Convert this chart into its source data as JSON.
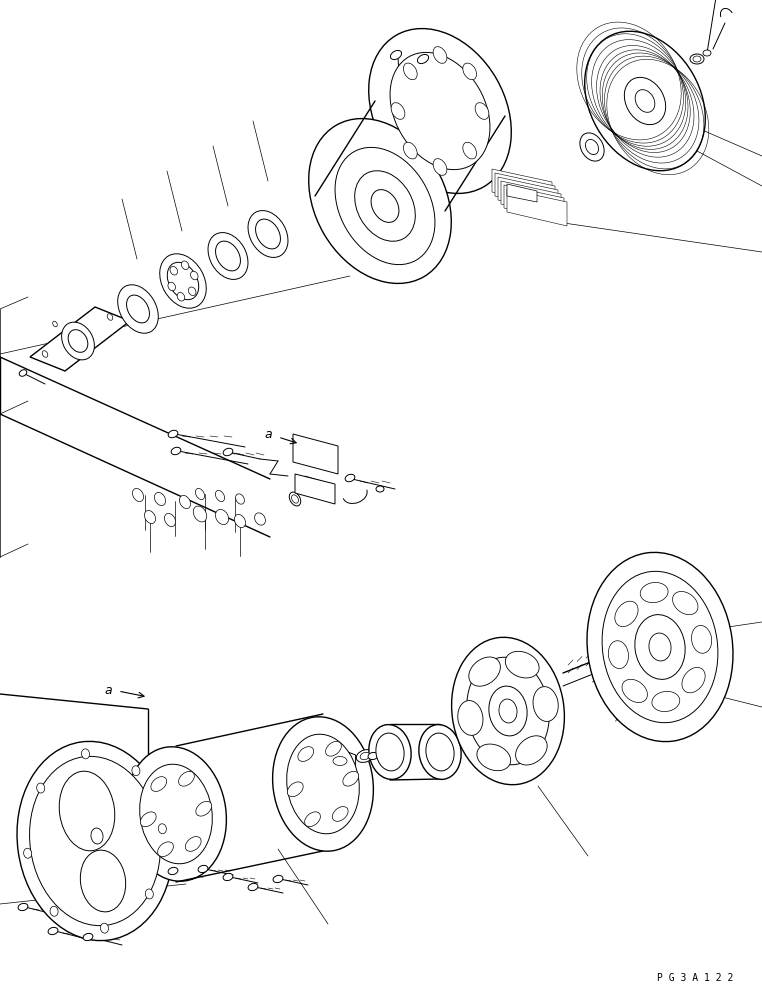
{
  "bg_color": "#ffffff",
  "line_color": "#000000",
  "lw": 0.7,
  "lw2": 1.0,
  "fig_width": 7.62,
  "fig_height": 9.95,
  "dpi": 100,
  "watermark": "P G 3 A 1 2 2"
}
